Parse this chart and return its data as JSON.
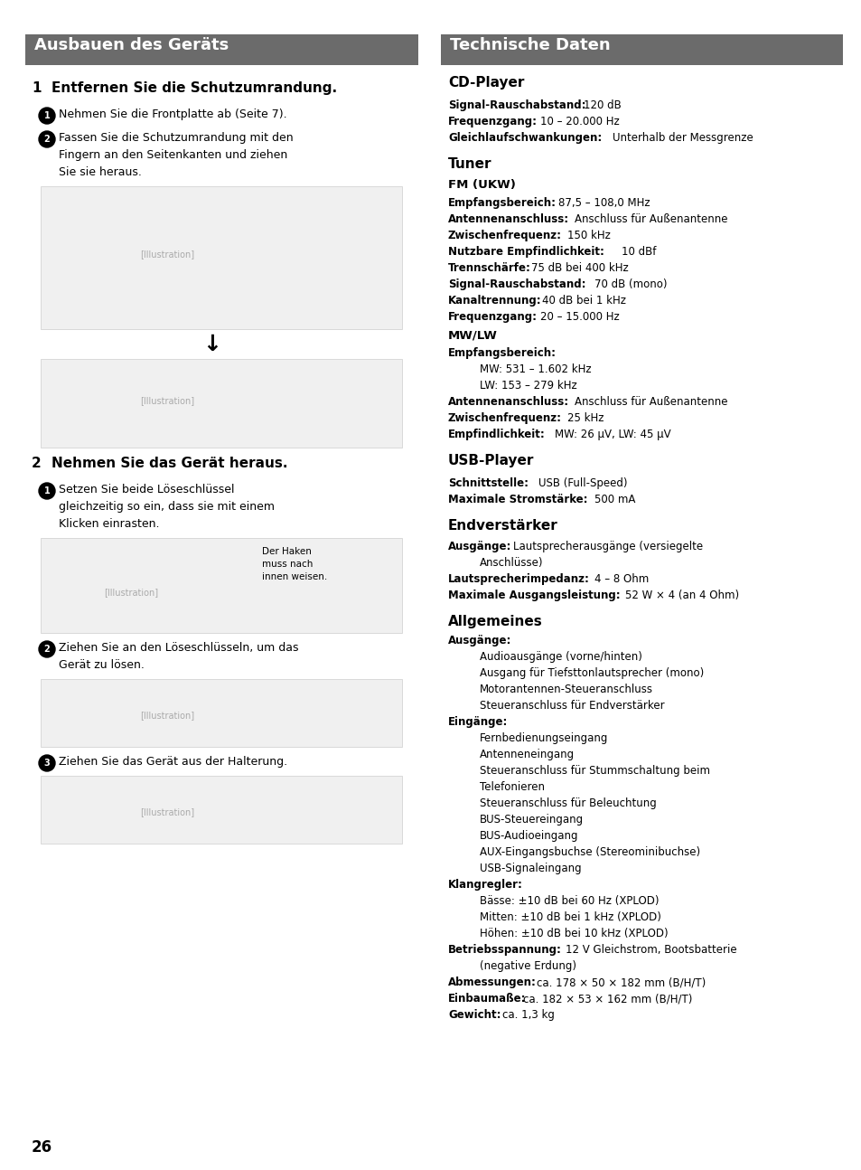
{
  "page_bg": "#ffffff",
  "header_bg": "#6b6b6b",
  "header_text_color": "#ffffff",
  "body_text_color": "#000000",
  "left_header": "Ausbauen des Geräts",
  "right_header": "Technische Daten",
  "page_number": "26"
}
